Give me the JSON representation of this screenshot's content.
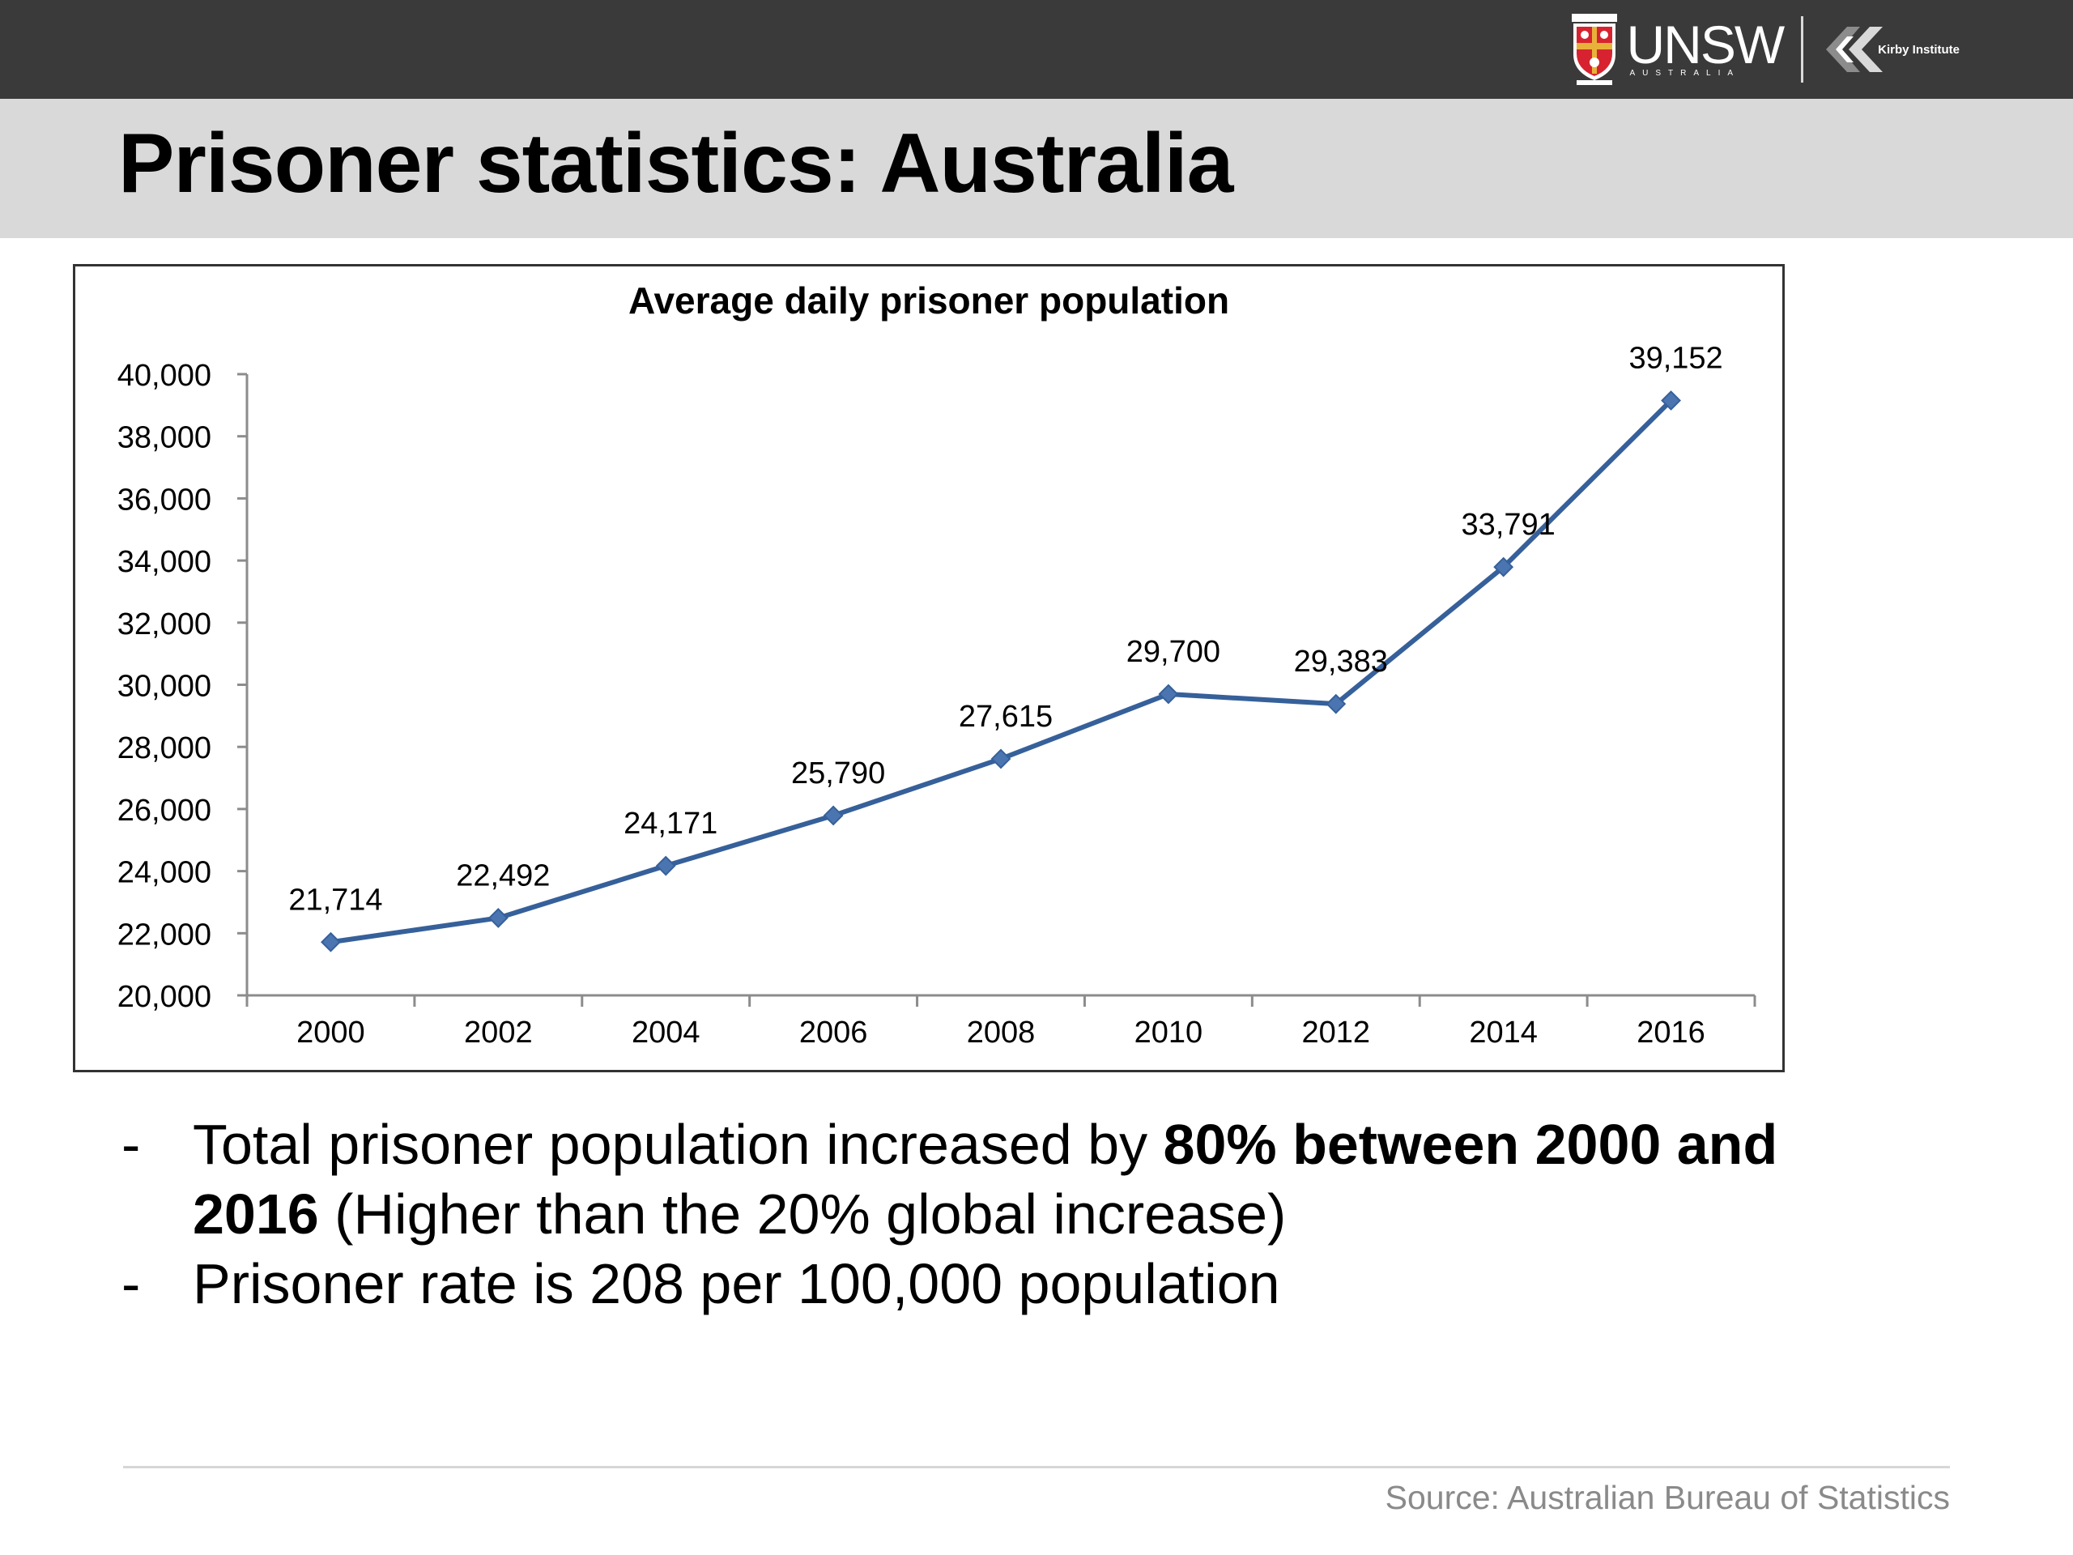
{
  "header": {
    "logo_unsw": "UNSW",
    "logo_unsw_sub": "AUSTRALIA",
    "logo_kirby": "Kirby Institute",
    "title": "Prisoner statistics: Australia"
  },
  "colors": {
    "top_bar": "#3a3a3a",
    "title_band": "#d9d9d9",
    "series_line": "#36609a",
    "marker": "#4a75b0"
  },
  "chart_data": {
    "type": "line",
    "title": "Average daily prisoner population",
    "xlabel": "",
    "ylabel": "",
    "categories": [
      "2000",
      "2002",
      "2004",
      "2006",
      "2008",
      "2010",
      "2012",
      "2014",
      "2016"
    ],
    "series": [
      {
        "values": [
          21714,
          22492,
          24171,
          25790,
          27615,
          29700,
          29383,
          33791,
          39152
        ],
        "labels": [
          "21,714",
          "22,492",
          "24,171",
          "25,790",
          "27,615",
          "29,700",
          "29,383",
          "33,791",
          "39,152"
        ]
      }
    ],
    "ylim": [
      20000,
      40000
    ],
    "y_ticks": [
      "20,000",
      "22,000",
      "24,000",
      "26,000",
      "28,000",
      "30,000",
      "32,000",
      "34,000",
      "36,000",
      "38,000",
      "40,000"
    ],
    "grid": false,
    "legend": "none",
    "marker": "diamond"
  },
  "bullets": {
    "dash": "-",
    "b1_pre": "Total prisoner population increased by ",
    "b1_bold1": "80% between 2000 and",
    "b1_bold2": "2016",
    "b1_post": " (Higher than the 20% global increase)",
    "b2": "Prisoner rate is 208 per 100,000 population"
  },
  "source": "Source: Australian Bureau of Statistics"
}
